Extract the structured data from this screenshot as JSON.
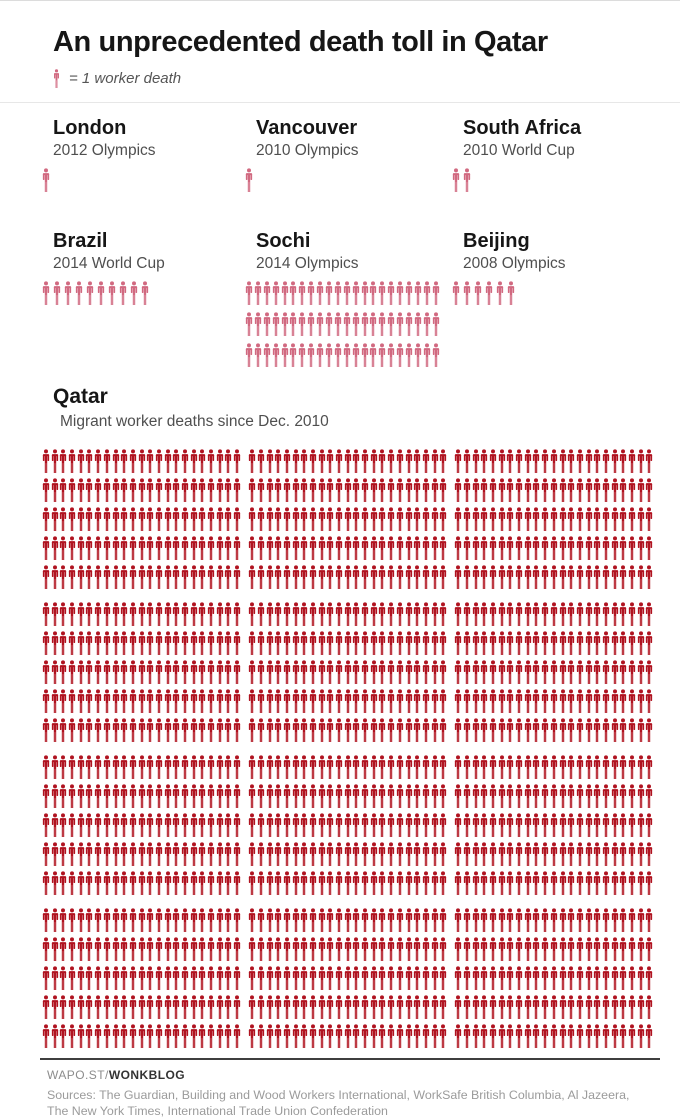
{
  "title": "An unprecedented death toll in Qatar",
  "legend": {
    "label": "= 1 worker death"
  },
  "chart_data": {
    "type": "pictogram",
    "title": "An unprecedented death toll in Qatar",
    "unit_label": "= 1 worker death",
    "icon": "worker-figure",
    "colors": {
      "comparison_pink": "#d16980",
      "qatar_red": "#b01320"
    },
    "groups": [
      {
        "name": "London",
        "event": "2012 Olympics",
        "deaths": 1
      },
      {
        "name": "Vancouver",
        "event": "2010 Olympics",
        "deaths": 1
      },
      {
        "name": "South Africa",
        "event": "2010 World Cup",
        "deaths": 2
      },
      {
        "name": "Brazil",
        "event": "2014 World Cup",
        "deaths": 10
      },
      {
        "name": "Sochi",
        "event": "2014 Olympics",
        "deaths": 66
      },
      {
        "name": "Beijing",
        "event": "2008 Olympics",
        "deaths": 6
      }
    ],
    "qatar": {
      "name": "Qatar",
      "subtitle": "Migrant worker deaths since Dec. 2010",
      "deaths": 1380,
      "layout": {
        "rows": 20,
        "blocks_per_row": 3,
        "per_block": 23,
        "row_group": 5
      }
    }
  },
  "footer": {
    "site": "WAPO.ST/",
    "blog": "WONKBLOG",
    "sources": "Sources: The Guardian, Building and Wood Workers International, WorkSafe British Columbia, Al Jazeera, The New York Times, International Trade Union Confederation"
  }
}
